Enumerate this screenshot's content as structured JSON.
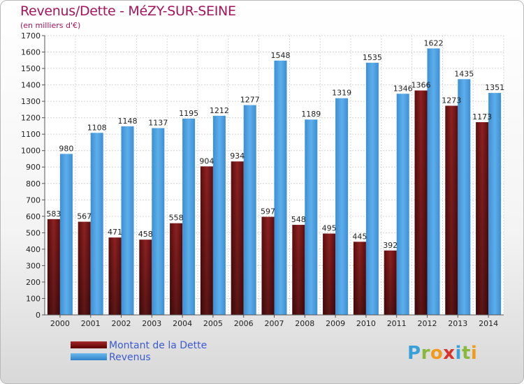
{
  "title": "Revenus/Dette - MéZY-SUR-SEINE",
  "subtitle": "(en milliers d'€)",
  "logo": {
    "letters": [
      "P",
      "r",
      "o",
      "x",
      "i",
      "t",
      "i"
    ],
    "colors": [
      "#3aa0dc",
      "#8ab83a",
      "#f29a1e",
      "#d8342a",
      "#3aa0dc",
      "#8ab83a",
      "#f29a1e"
    ]
  },
  "chart_data": {
    "type": "bar",
    "categories": [
      "2000",
      "2001",
      "2002",
      "2003",
      "2004",
      "2005",
      "2006",
      "2007",
      "2008",
      "2009",
      "2010",
      "2011",
      "2012",
      "2013",
      "2014"
    ],
    "series": [
      {
        "name": "Montant de la Dette",
        "color": "#7a1414",
        "values": [
          583,
          567,
          471,
          458,
          558,
          904,
          934,
          597,
          548,
          495,
          445,
          392,
          1366,
          1273,
          1173
        ],
        "labels": [
          "583",
          "567",
          "471",
          "458",
          "558",
          "904",
          "934",
          "597",
          "548",
          "495",
          "445",
          "392",
          "1366",
          "1273",
          "1173"
        ]
      },
      {
        "name": "Revenus",
        "color": "#4a9ee0",
        "values": [
          980,
          1108,
          1148,
          1137,
          1195,
          1212,
          1277,
          1548,
          1189,
          1319,
          1535,
          1346,
          1622,
          1435,
          1351
        ],
        "labels": [
          "980",
          "1108",
          "1148",
          "1137",
          "1195",
          "1212",
          "1277",
          "1548",
          "1189",
          "1319",
          "1535",
          "1346",
          "1622",
          "1435",
          "1351"
        ]
      }
    ],
    "yticks": [
      "0",
      "100",
      "200",
      "300",
      "400",
      "500",
      "600",
      "700",
      "800",
      "900",
      "1000",
      "1100",
      "1200",
      "1300",
      "1400",
      "1500",
      "1600",
      "1700"
    ],
    "ylim": [
      0,
      1700
    ],
    "grid": true,
    "legend_position": "bottom-left"
  }
}
